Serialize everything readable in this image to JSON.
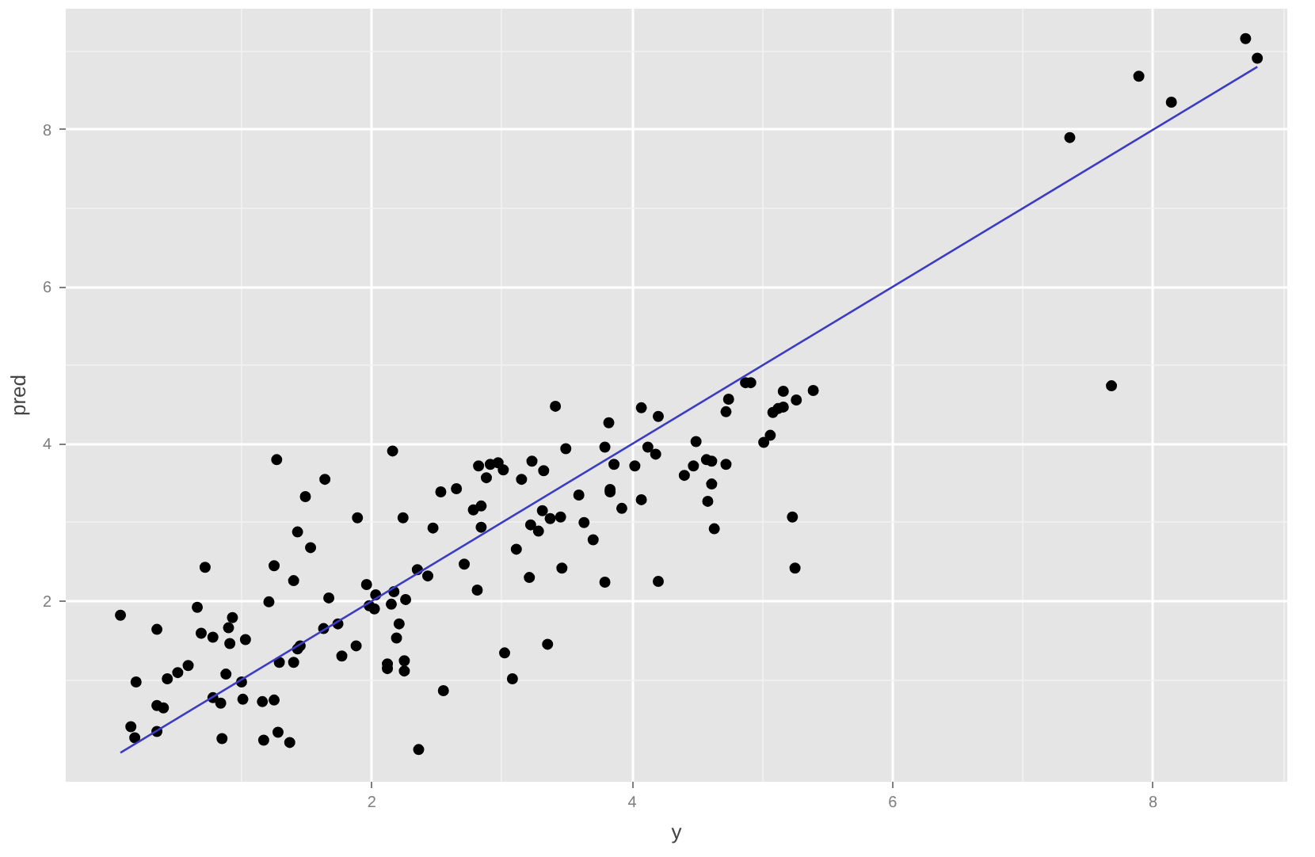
{
  "chart_data": {
    "type": "scatter",
    "xlabel": "y",
    "ylabel": "pred",
    "xlim": [
      -0.35,
      9.03
    ],
    "ylim": [
      -0.3,
      9.54
    ],
    "xticks": [
      2,
      4,
      6,
      8
    ],
    "yticks": [
      2,
      4,
      6,
      8
    ],
    "grid": true,
    "series": [
      {
        "marker": "circle",
        "color": "#000000",
        "x": [
          1.27,
          1.64,
          1.49,
          1.89,
          1.43,
          1.53,
          0.72,
          1.25,
          1.4,
          1.96,
          1.21,
          1.67,
          2.03,
          1.98,
          2.02,
          0.07,
          0.66,
          0.93,
          0.35,
          0.9,
          0.69,
          0.78,
          0.91,
          1.03,
          1.63,
          1.74,
          1.88,
          1.77,
          1.45,
          1.43,
          1.29,
          1.4,
          0.59,
          0.51,
          0.43,
          0.19,
          0.88,
          1.0,
          0.78,
          0.84,
          1.01,
          1.16,
          1.25,
          0.35,
          0.4,
          0.15,
          0.35,
          0.18,
          0.85,
          1.28,
          1.17,
          1.37,
          3.41,
          2.16,
          3.49,
          3.79,
          2.82,
          2.91,
          2.97,
          3.01,
          2.88,
          3.23,
          3.32,
          3.15,
          2.53,
          2.65,
          3.59,
          2.78,
          2.84,
          2.24,
          2.47,
          2.84,
          3.31,
          3.37,
          3.45,
          3.22,
          3.28,
          3.63,
          3.7,
          3.11,
          2.71,
          2.35,
          2.43,
          3.46,
          3.21,
          3.79,
          2.81,
          2.17,
          2.15,
          2.26,
          2.21,
          2.19,
          2.12,
          2.12,
          2.25,
          2.25,
          3.02,
          3.35,
          3.08,
          2.55,
          2.36,
          4.87,
          4.91,
          5.16,
          5.39,
          5.26,
          4.74,
          4.72,
          5.08,
          5.12,
          5.16,
          4.07,
          4.2,
          3.82,
          4.12,
          4.18,
          4.49,
          5.06,
          5.01,
          3.86,
          4.02,
          4.47,
          4.57,
          4.61,
          4.72,
          4.4,
          4.61,
          3.83,
          3.83,
          4.07,
          3.92,
          4.58,
          5.23,
          4.63,
          5.25,
          4.2,
          8.71,
          8.8,
          7.89,
          8.14,
          7.36,
          7.68
        ],
        "values": [
          3.8,
          3.55,
          3.33,
          3.06,
          2.88,
          2.68,
          2.43,
          2.45,
          2.26,
          2.21,
          1.99,
          2.04,
          2.08,
          1.94,
          1.9,
          1.82,
          1.92,
          1.79,
          1.64,
          1.66,
          1.59,
          1.54,
          1.46,
          1.51,
          1.65,
          1.71,
          1.43,
          1.3,
          1.43,
          1.39,
          1.22,
          1.22,
          1.18,
          1.09,
          1.01,
          0.97,
          1.07,
          0.97,
          0.77,
          0.7,
          0.75,
          0.72,
          0.74,
          0.67,
          0.64,
          0.4,
          0.34,
          0.26,
          0.25,
          0.33,
          0.23,
          0.2,
          4.48,
          3.91,
          3.94,
          3.96,
          3.72,
          3.74,
          3.76,
          3.67,
          3.57,
          3.78,
          3.66,
          3.55,
          3.39,
          3.43,
          3.35,
          3.16,
          3.21,
          3.06,
          2.93,
          2.94,
          3.15,
          3.05,
          3.07,
          2.97,
          2.89,
          3.0,
          2.78,
          2.66,
          2.47,
          2.4,
          2.32,
          2.42,
          2.3,
          2.24,
          2.14,
          2.12,
          1.96,
          2.02,
          1.71,
          1.53,
          1.2,
          1.14,
          1.24,
          1.11,
          1.34,
          1.45,
          1.01,
          0.86,
          0.11,
          4.78,
          4.78,
          4.67,
          4.68,
          4.56,
          4.57,
          4.41,
          4.4,
          4.45,
          4.47,
          4.46,
          4.35,
          4.27,
          3.96,
          3.87,
          4.03,
          4.11,
          4.02,
          3.74,
          3.72,
          3.72,
          3.8,
          3.78,
          3.74,
          3.6,
          3.49,
          3.42,
          3.39,
          3.29,
          3.18,
          3.27,
          3.07,
          2.92,
          2.42,
          2.25,
          9.16,
          8.91,
          8.68,
          8.35,
          7.9,
          4.74
        ]
      },
      {
        "type": "line",
        "color": "#3b3bc4",
        "x": [
          0.07,
          8.8
        ],
        "values": [
          0.07,
          8.8
        ]
      }
    ]
  }
}
